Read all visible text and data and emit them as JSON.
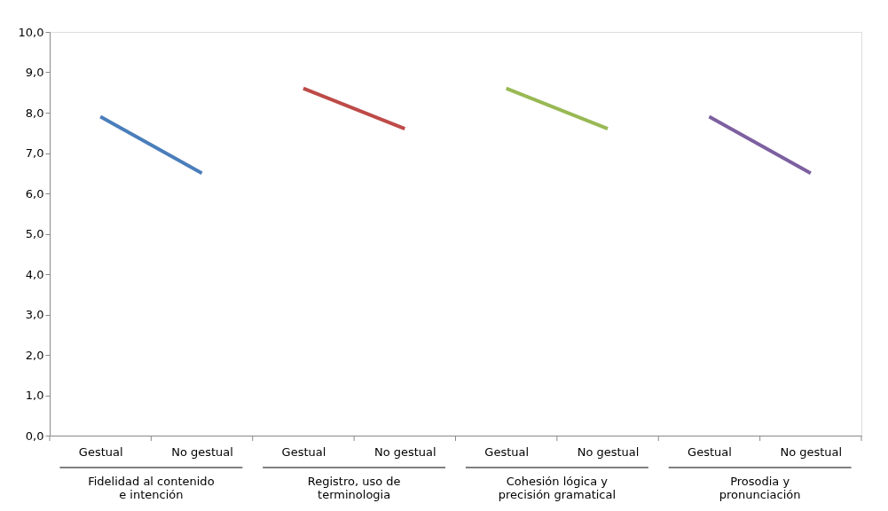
{
  "chart_data": {
    "type": "line",
    "categories": [
      "Gestual",
      "No gestual",
      "Gestual",
      "No gestual",
      "Gestual",
      "No gestual",
      "Gestual",
      "No gestual"
    ],
    "series": [
      {
        "color": "#4a7ebb",
        "values": [
          7.9,
          6.5,
          null,
          null,
          null,
          null,
          null,
          null
        ]
      },
      {
        "color": "#be4b48",
        "values": [
          null,
          null,
          8.6,
          7.6,
          null,
          null,
          null,
          null
        ]
      },
      {
        "color": "#98b954",
        "values": [
          null,
          null,
          null,
          null,
          8.6,
          7.6,
          null,
          null
        ]
      },
      {
        "color": "#7d60a0",
        "values": [
          null,
          null,
          null,
          null,
          null,
          null,
          7.9,
          6.5
        ]
      }
    ],
    "ylim": [
      0,
      10
    ],
    "yticks": [
      {
        "value": 0,
        "label": "0,0"
      },
      {
        "value": 1,
        "label": "1,0"
      },
      {
        "value": 2,
        "label": "2,0"
      },
      {
        "value": 3,
        "label": "3,0"
      },
      {
        "value": 4,
        "label": "4,0"
      },
      {
        "value": 5,
        "label": "5,0"
      },
      {
        "value": 6,
        "label": "6,0"
      },
      {
        "value": 7,
        "label": "7,0"
      },
      {
        "value": 8,
        "label": "8,0"
      },
      {
        "value": 9,
        "label": "9,0"
      },
      {
        "value": 10,
        "label": "10,0"
      }
    ],
    "annotations": [
      "Fidelidad al contenido\ne intención",
      "Registro, uso de\nterminologia",
      "Cohesión lógica y\nprecisión gramatical",
      "Prosodia y\npronunciación"
    ],
    "grid": false,
    "marker": "none",
    "line_style": "solid"
  }
}
